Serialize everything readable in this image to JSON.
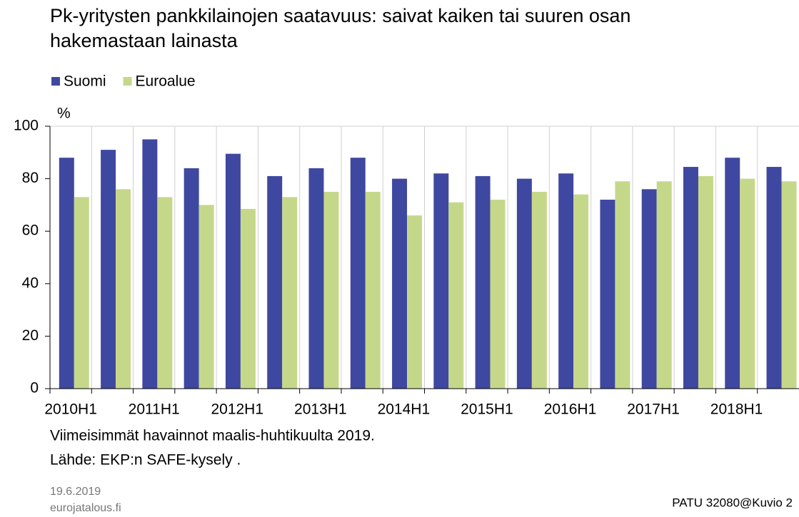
{
  "chart_data": {
    "type": "bar",
    "title": [
      "Pk-yritysten pankkilainojen saatavuus: saivat kaiken tai suuren osan",
      "hakemastaan lainasta"
    ],
    "y_unit": "%",
    "categories": [
      "2010H1",
      null,
      "2011H1",
      null,
      "2012H1",
      null,
      "2013H1",
      null,
      "2014H1",
      null,
      "2015H1",
      null,
      "2016H1",
      null,
      "2017H1",
      null,
      "2018H1",
      null
    ],
    "series": [
      {
        "name": "Suomi",
        "color": "#3f48a0",
        "values": [
          88,
          91,
          95,
          84,
          89.5,
          81,
          84,
          88,
          80,
          82,
          81,
          80,
          82,
          72,
          76,
          84.5,
          88,
          84.5
        ]
      },
      {
        "name": "Euroalue",
        "color": "#c5d88a",
        "values": [
          73,
          76,
          73,
          70,
          68.5,
          73,
          75,
          75,
          66,
          71,
          72,
          75,
          74,
          79,
          79,
          81,
          80,
          79
        ]
      }
    ],
    "ylim": [
      0,
      100
    ],
    "yticks": [
      0,
      20,
      40,
      60,
      80,
      100
    ],
    "grid": true,
    "notes": [
      "Viimeisimmät havainnot maalis-huhtikuulta 2019.",
      "Lähde: EKP:n SAFE-kysely ."
    ],
    "date": "19.6.2019",
    "site": "eurojatalous.fi",
    "code": "PATU 32080@Kuvio 2"
  }
}
